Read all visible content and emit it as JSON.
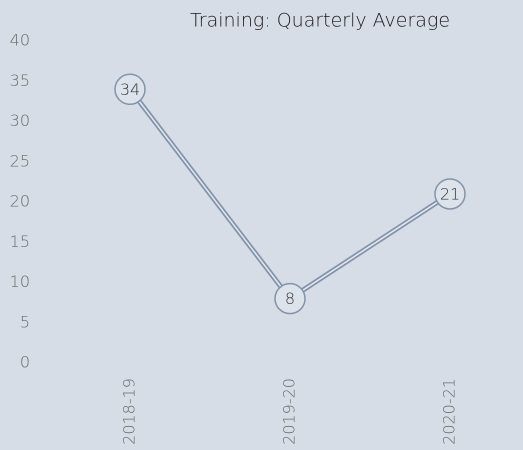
{
  "chart_data": {
    "type": "line",
    "title": "Training: Quarterly Average",
    "categories": [
      "2018-19",
      "2019-20",
      "2020-21"
    ],
    "series": [
      {
        "name": "Training",
        "color": "#8393ab",
        "values": [
          34,
          8,
          21
        ]
      }
    ],
    "ylim": [
      0,
      40
    ],
    "yticks": [
      0,
      5,
      10,
      15,
      20,
      25,
      30,
      35,
      40
    ],
    "grid": false
  }
}
